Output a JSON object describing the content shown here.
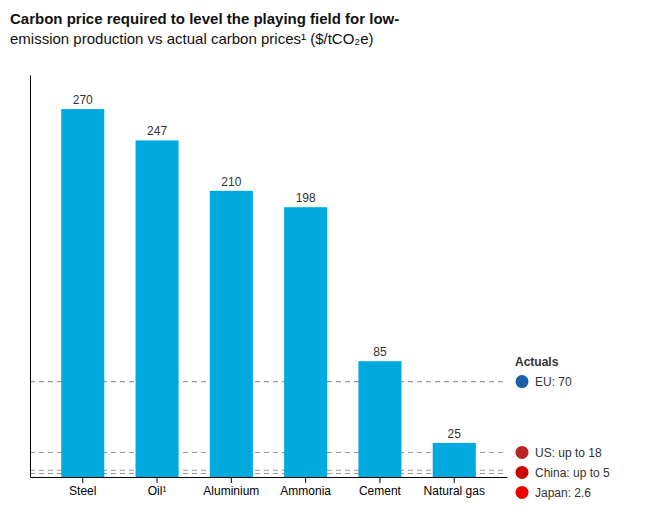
{
  "chart_data": {
    "type": "bar",
    "title": "Carbon price required to level the playing field for low-",
    "subtitle": "emission production vs actual carbon prices¹ ($/tCO₂e)",
    "categories": [
      "Steel",
      "Oil¹",
      "Aluminium",
      "Ammonia",
      "Cement",
      "Natural gas"
    ],
    "values": [
      270,
      247,
      210,
      198,
      85,
      25
    ],
    "color": "#00AADF",
    "ylim": [
      0,
      295
    ],
    "grid": false,
    "data_labels": true,
    "tick_labels": "x",
    "reference_lines_title": "Actuals",
    "reference_lines": [
      {
        "y": 70,
        "label": "EU: 70",
        "color": "#1a5fa8",
        "line_style": "dashed"
      },
      {
        "y": 18,
        "label": "US: up to 18",
        "color": "#BB2222",
        "line_style": "dashed"
      },
      {
        "y": 5,
        "label": "China: up to 5",
        "color": "#CC0000",
        "line_style": "dashed"
      },
      {
        "y": 2.6,
        "label": "Japan: 2.6",
        "color": "#EE0000",
        "line_style": "dashed"
      }
    ]
  }
}
